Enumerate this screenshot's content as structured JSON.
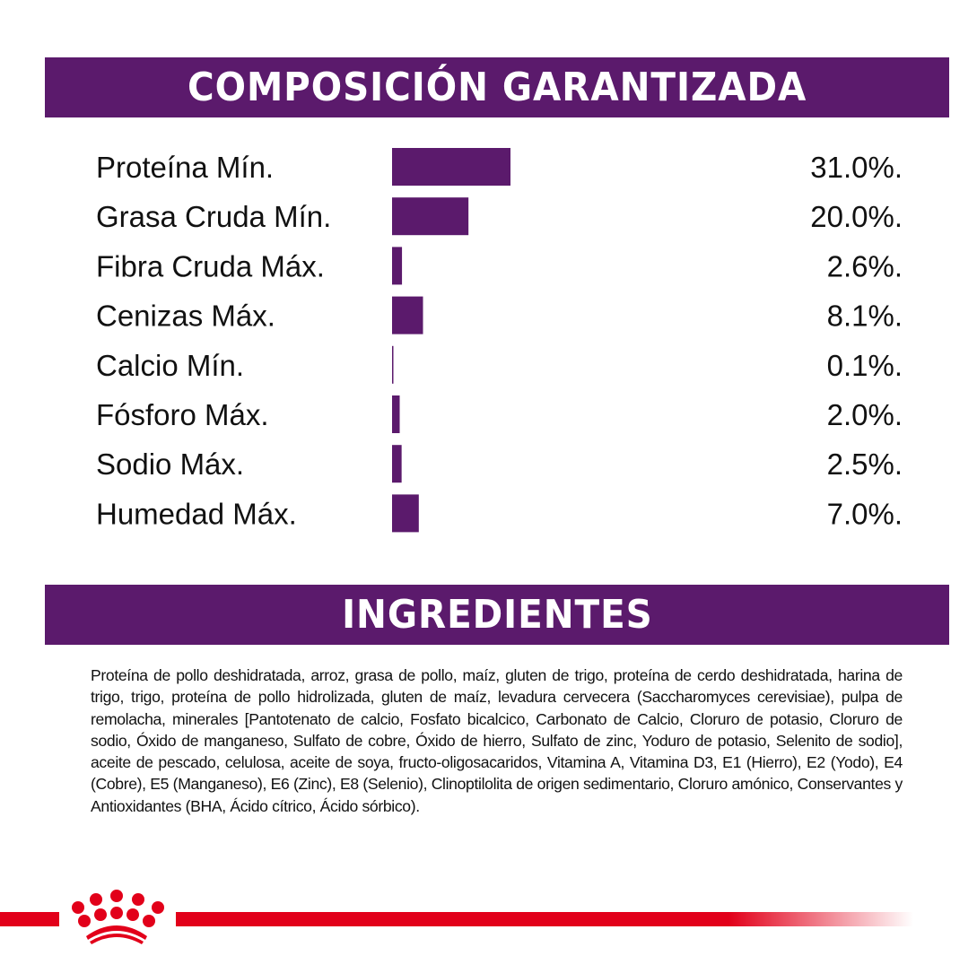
{
  "sections": {
    "composition_title": "COMPOSICIÓN GARANTIZADA",
    "ingredients_title": "INGREDIENTES"
  },
  "chart_data": {
    "type": "bar",
    "orientation": "horizontal",
    "categories": [
      "Proteína Mín.",
      "Grasa Cruda Mín.",
      "Fibra Cruda Máx.",
      "Cenizas Máx.",
      "Calcio Mín.",
      "Fósforo Máx.",
      "Sodio Máx.",
      "Humedad Máx."
    ],
    "values": [
      31.0,
      20.0,
      2.6,
      8.1,
      0.1,
      2.0,
      2.5,
      7.0
    ],
    "value_labels": [
      "31.0%.",
      "20.0%.",
      "2.6%.",
      "8.1%.",
      "0.1%.",
      "2.0%.",
      "2.5%.",
      "7.0%."
    ],
    "bar_color": "#5b1a6c",
    "grid": false
  },
  "ingredients_text": "Proteína de pollo deshidratada, arroz, grasa de pollo, maíz, gluten de trigo, proteína de cerdo deshidratada, harina de trigo, trigo, proteína de pollo hidrolizada, gluten de maíz, levadura cervecera (Saccharomyces cerevisiae), pulpa de remolacha, minerales [Pantotenato de calcio, Fosfato bicalcico, Carbonato de Calcio, Cloruro de potasio, Cloruro de sodio, Óxido de manganeso, Sulfato de cobre, Óxido de hierro, Sulfato de zinc, Yoduro de potasio, Selenito de sodio], aceite de pescado, celulosa, aceite de soya, fructo-oligosacaridos, Vitamina A, Vitamina D3, E1 (Hierro), E2 (Yodo), E4 (Cobre), E5 (Manganeso), E6 (Zinc), E8 (Selenio), Clinoptilolita de origen sedimentario, Cloruro amónico, Conservantes y Antioxidantes (BHA, Ácido cítrico, Ácido sórbico).",
  "brand": {
    "logo": "royal-canin-crown",
    "color": "#e2001a"
  }
}
